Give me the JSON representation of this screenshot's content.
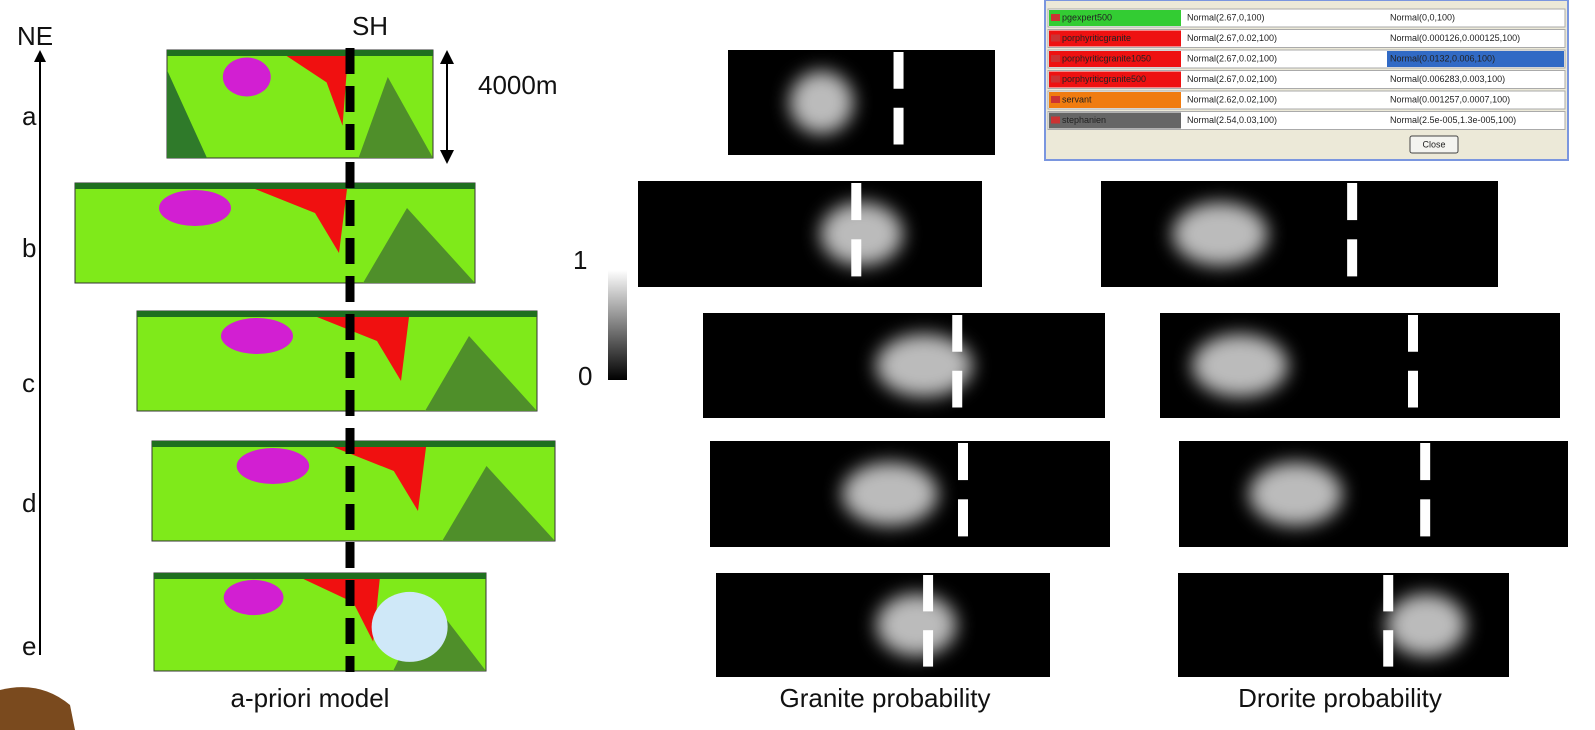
{
  "figure": {
    "orientation": "NE",
    "section_marker": "SH",
    "scale_label": "4000m",
    "rows": [
      "a",
      "b",
      "c",
      "d",
      "e"
    ],
    "colorbar": {
      "top": "1",
      "bottom": "0"
    },
    "captions": {
      "model": "a-priori model",
      "granite": "Granite probability",
      "diorite": "Drorite probability"
    }
  },
  "table": {
    "rows": [
      {
        "name": "pgexpert500",
        "color": "#33cc33",
        "density": "Normal(2.67,0,100)",
        "susceptibility": "Normal(0,0,100)"
      },
      {
        "name": "porphyriticgranite",
        "color": "#ee1111",
        "density": "Normal(2.67,0.02,100)",
        "susceptibility": "Normal(0.000126,0.000125,100)"
      },
      {
        "name": "porphyriticgranite1050",
        "color": "#ee1111",
        "density": "Normal(2.67,0.02,100)",
        "susceptibility": "Normal(0.0132,0.006,100)",
        "selected": true
      },
      {
        "name": "porphyriticgranite500",
        "color": "#ee1111",
        "density": "Normal(2.67,0.02,100)",
        "susceptibility": "Normal(0.006283,0.003,100)"
      },
      {
        "name": "servant",
        "color": "#f07c10",
        "density": "Normal(2.62,0.02,100)",
        "susceptibility": "Normal(0.001257,0.0007,100)"
      },
      {
        "name": "stephanien",
        "color": "#666666",
        "density": "Normal(2.54,0.03,100)",
        "susceptibility": "Normal(2.5e-005,1.3e-005,100)"
      }
    ],
    "button": "Close"
  }
}
